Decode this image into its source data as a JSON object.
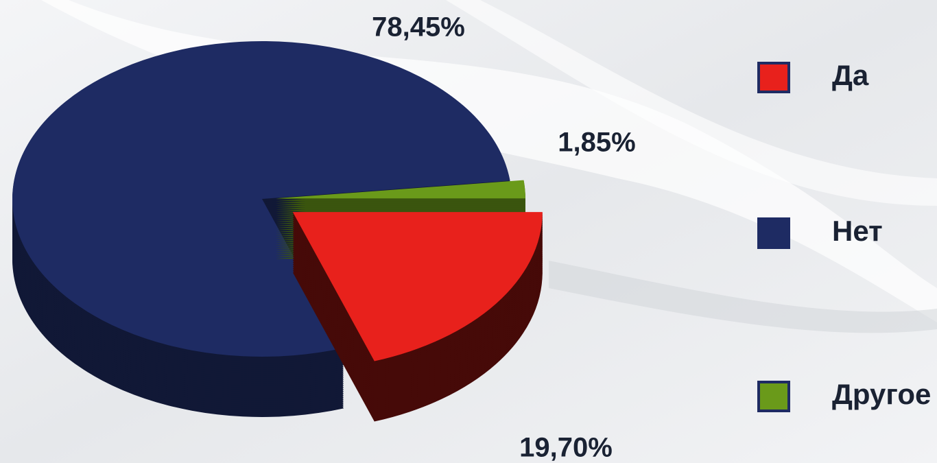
{
  "chart_data": {
    "type": "pie3d",
    "categories": [
      "Да",
      "Нет",
      "Другое"
    ],
    "values": [
      19.7,
      78.45,
      1.85
    ],
    "value_labels": [
      "19,70%",
      "78,45%",
      "1,85%"
    ],
    "colors": [
      "#e8211c",
      "#1e2b63",
      "#6a9a1a"
    ],
    "legend": "right"
  }
}
